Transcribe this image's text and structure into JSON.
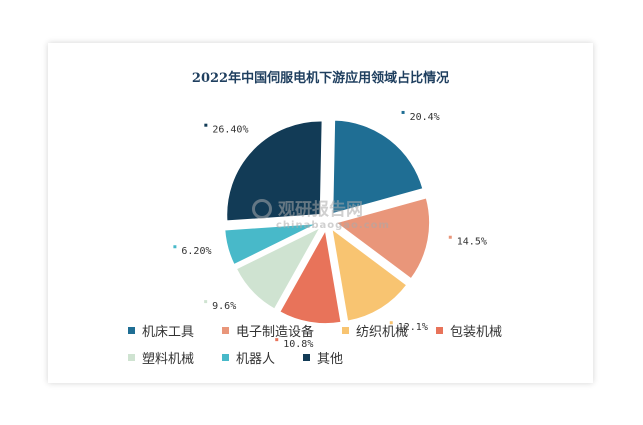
{
  "chart_data": {
    "type": "pie",
    "title": "2022年中国伺服电机下游应用领域占比情况",
    "categories": [
      "机床工具",
      "电子制造设备",
      "纺织机械",
      "包装机械",
      "塑料机械",
      "机器人",
      "其他"
    ],
    "values": [
      20.4,
      14.5,
      12.1,
      10.8,
      9.6,
      6.2,
      26.4
    ],
    "value_labels": [
      "20.4%",
      "14.5%",
      "12.1%",
      "10.8%",
      "9.6%",
      "6.20%",
      "26.40%"
    ],
    "colors": [
      "#1f6e94",
      "#e9967a",
      "#f8c471",
      "#e8735a",
      "#cfe3d1",
      "#48b9c9",
      "#123b56"
    ],
    "legend_position": "bottom",
    "exploded": true
  },
  "watermark": {
    "line1": "观研报告网",
    "line2": "chinabaogao.com"
  }
}
